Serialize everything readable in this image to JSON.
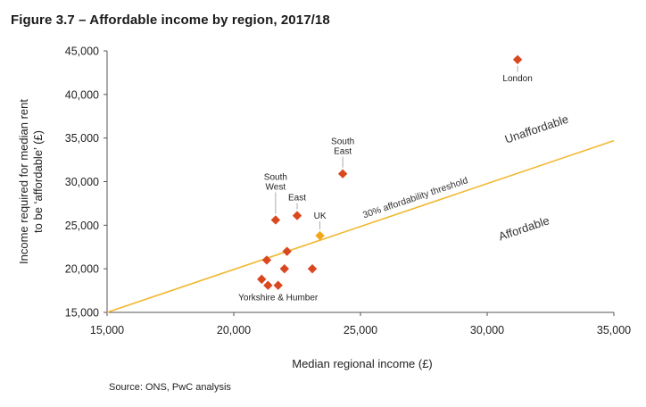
{
  "title": "Figure 3.7 – Affordable income by region, 2017/18",
  "source": "Source: ONS, PwC analysis",
  "chart_data": {
    "type": "scatter",
    "xlabel": "Median regional income (£)",
    "ylabel_lines": [
      "Income required for median rent",
      "to be ‘affordable’ (£)"
    ],
    "xlim": [
      15000,
      35000
    ],
    "ylim": [
      15000,
      45000
    ],
    "xticks": [
      15000,
      20000,
      25000,
      30000,
      35000
    ],
    "xtick_labels": [
      "15,000",
      "20,000",
      "25,000",
      "30,000",
      "35,000"
    ],
    "yticks": [
      15000,
      20000,
      25000,
      30000,
      35000,
      40000,
      45000
    ],
    "ytick_labels": [
      "15,000",
      "20,000",
      "25,000",
      "30,000",
      "35,000",
      "40,000",
      "45,000"
    ],
    "grid": false,
    "colors": {
      "region": "#d9481f",
      "uk": "#f2a71b",
      "threshold": "#f2b830",
      "axis": "#555555",
      "leader": "#999999"
    },
    "threshold_line": {
      "label": "30% affordability threshold",
      "points": [
        [
          15000,
          15000
        ],
        [
          35000,
          34700
        ]
      ]
    },
    "zone_labels": {
      "above": "Unaffordable",
      "below": "Affordable"
    },
    "points": [
      {
        "label": "London",
        "x": 31200,
        "y": 44000,
        "kind": "region"
      },
      {
        "label": "South East",
        "x": 24300,
        "y": 30900,
        "kind": "region"
      },
      {
        "label": "South West",
        "x": 21650,
        "y": 25600,
        "kind": "region"
      },
      {
        "label": "East",
        "x": 22500,
        "y": 26100,
        "kind": "region"
      },
      {
        "label": "UK",
        "x": 23400,
        "y": 23800,
        "kind": "uk"
      },
      {
        "label": "",
        "x": 22100,
        "y": 22000,
        "kind": "region"
      },
      {
        "label": "",
        "x": 21300,
        "y": 21000,
        "kind": "region"
      },
      {
        "label": "",
        "x": 22000,
        "y": 20000,
        "kind": "region"
      },
      {
        "label": "",
        "x": 23100,
        "y": 20000,
        "kind": "region"
      },
      {
        "label": "",
        "x": 21100,
        "y": 18800,
        "kind": "region"
      },
      {
        "label": "",
        "x": 21350,
        "y": 18100,
        "kind": "region"
      },
      {
        "label": "Yorkshire & Humber",
        "x": 21750,
        "y": 18100,
        "kind": "region"
      }
    ]
  }
}
